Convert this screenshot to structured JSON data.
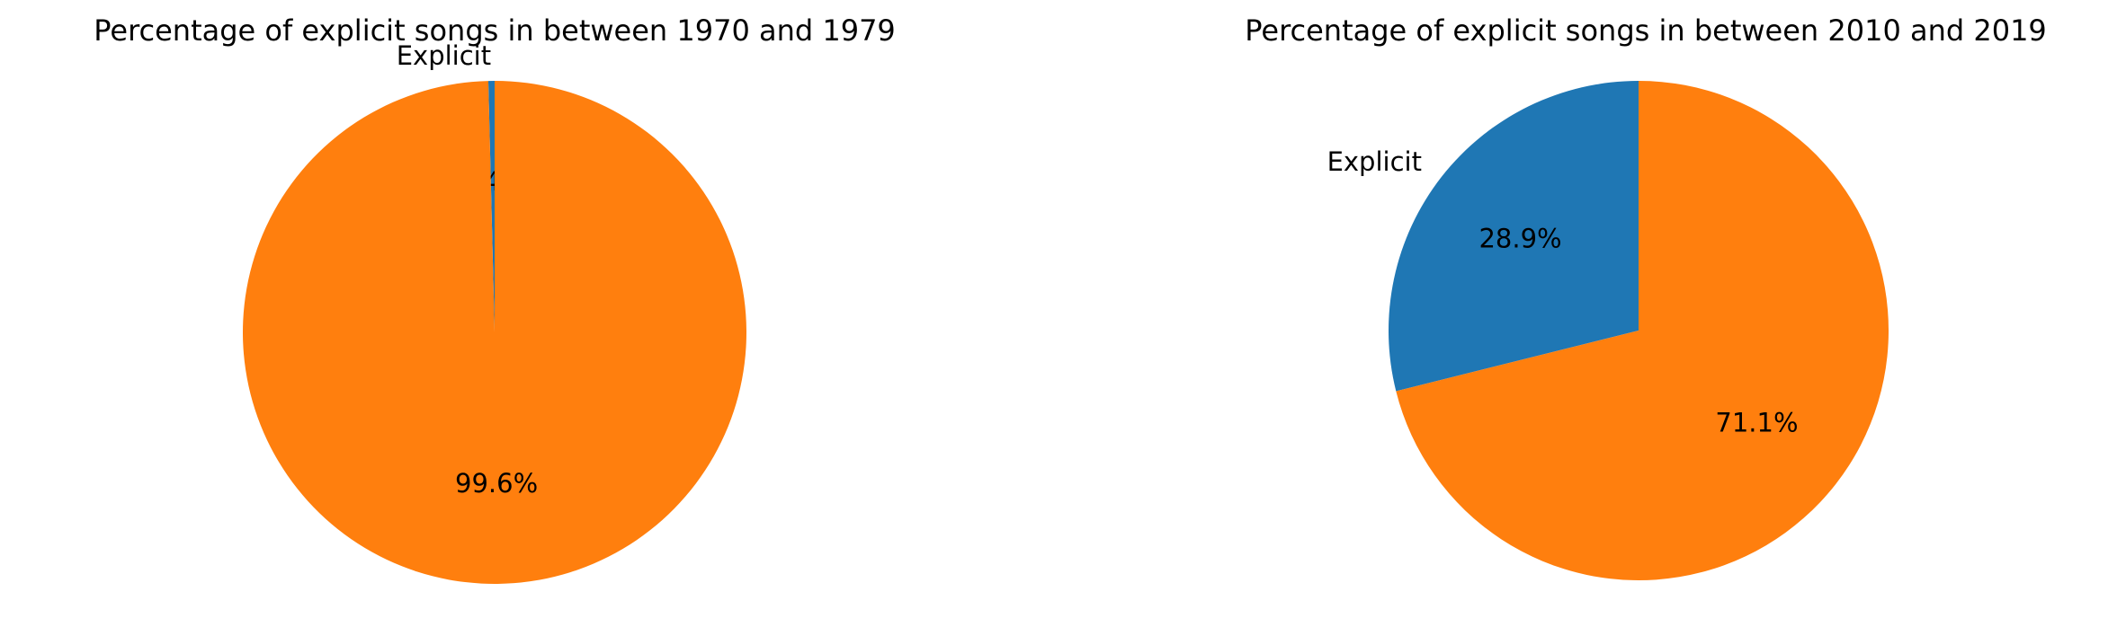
{
  "chart_data": [
    {
      "type": "pie",
      "title": "Percentage of explicit songs in between 1970 and 1979",
      "start_angle_deg": 90,
      "direction": "counterclockwise",
      "slices": [
        {
          "label": "Explicit",
          "value": 0.4,
          "pct_label": "0.4%",
          "color": "#1f77b4"
        },
        {
          "label": "",
          "value": 99.6,
          "pct_label": "99.6%",
          "color": "#ff7f0e"
        }
      ]
    },
    {
      "type": "pie",
      "title": "Percentage of explicit songs in between 2010 and 2019",
      "start_angle_deg": 90,
      "direction": "counterclockwise",
      "slices": [
        {
          "label": "Explicit",
          "value": 28.9,
          "pct_label": "28.9%",
          "color": "#1f77b4"
        },
        {
          "label": "",
          "value": 71.1,
          "pct_label": "71.1%",
          "color": "#ff7f0e"
        }
      ]
    }
  ]
}
